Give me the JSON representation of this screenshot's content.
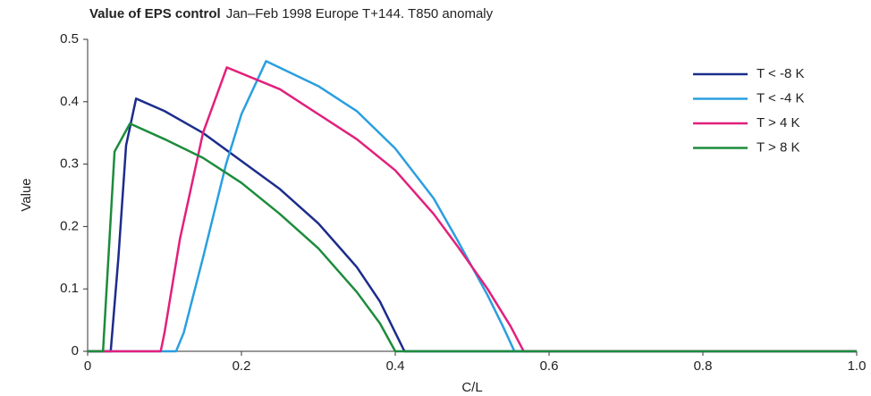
{
  "chart_data": {
    "type": "line",
    "title": "Value of EPS control",
    "subtitle": "Jan–Feb 1998 Europe T+144. T850 anomaly",
    "x_label": "C/L",
    "y_label": "Value",
    "xlim": [
      0,
      1
    ],
    "ylim": [
      0,
      0.5
    ],
    "xticks": [
      0,
      0.2,
      0.4,
      0.6,
      0.8,
      {
        "value": 1,
        "label": "1.0"
      }
    ],
    "yticks": [
      0,
      0.1,
      0.2,
      0.3,
      0.4,
      0.5
    ],
    "legend": "upper-right",
    "series": [
      {
        "name": "T < -8 K",
        "color": "#1c2c8c",
        "x": [
          0,
          0.03,
          0.04,
          0.05,
          0.063,
          0.1,
          0.15,
          0.2,
          0.25,
          0.3,
          0.35,
          0.38,
          0.4,
          0.412,
          0.6,
          1
        ],
        "values": [
          0,
          0,
          0.15,
          0.33,
          0.405,
          0.385,
          0.35,
          0.305,
          0.26,
          0.205,
          0.135,
          0.08,
          0.03,
          0,
          0,
          1e-09
        ]
      },
      {
        "name": "T < -4 K",
        "color": "#2a9fe0",
        "x": [
          0,
          0.115,
          0.125,
          0.15,
          0.18,
          0.2,
          0.232,
          0.3,
          0.35,
          0.4,
          0.45,
          0.48,
          0.52,
          0.54,
          0.555,
          0.7,
          1
        ],
        "values": [
          0,
          0,
          0.03,
          0.15,
          0.3,
          0.38,
          0.465,
          0.425,
          0.385,
          0.325,
          0.245,
          0.18,
          0.09,
          0.04,
          0,
          0,
          0
        ]
      },
      {
        "name": "T > 4 K",
        "color": "#e2207c",
        "x": [
          0,
          0.095,
          0.1,
          0.12,
          0.15,
          0.181,
          0.25,
          0.3,
          0.35,
          0.4,
          0.45,
          0.48,
          0.52,
          0.55,
          0.567,
          0.7,
          1
        ],
        "values": [
          0,
          0,
          0.03,
          0.18,
          0.35,
          0.455,
          0.42,
          0.38,
          0.34,
          0.29,
          0.22,
          0.17,
          0.1,
          0.04,
          0,
          0,
          0
        ]
      },
      {
        "name": "T > 8 K",
        "color": "#1c8c3c",
        "x": [
          0,
          0.02,
          0.035,
          0.055,
          0.1,
          0.15,
          0.2,
          0.25,
          0.3,
          0.35,
          0.38,
          0.4,
          0.6,
          1
        ],
        "values": [
          0,
          0,
          0.32,
          0.365,
          0.34,
          0.31,
          0.27,
          0.22,
          0.165,
          0.095,
          0.045,
          0,
          0,
          0
        ]
      }
    ]
  }
}
